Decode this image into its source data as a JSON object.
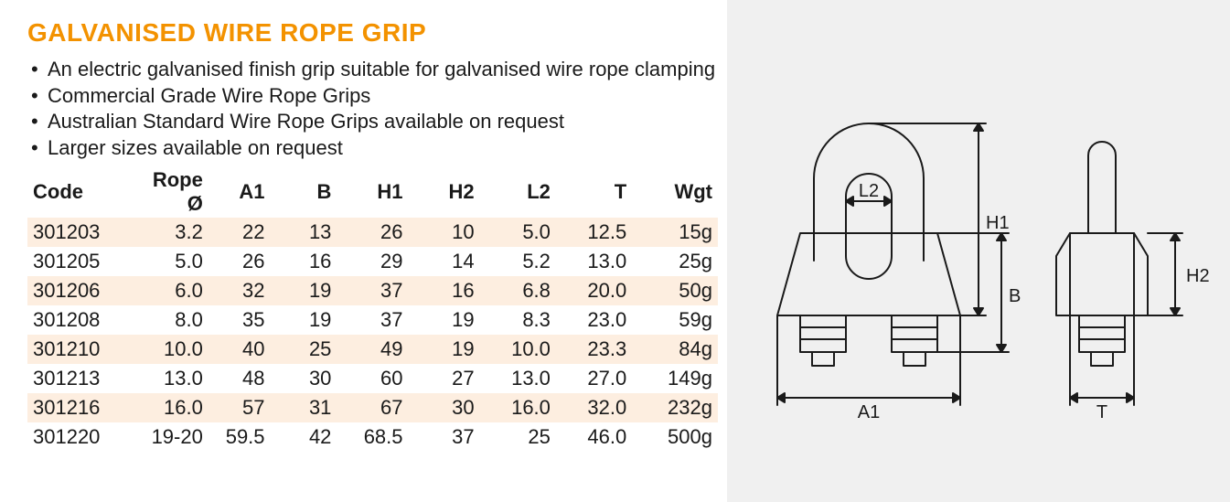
{
  "page": {
    "title": "GALVANISED WIRE ROPE GRIP",
    "title_color": "#f39200",
    "title_fontsize": 28,
    "body_fontsize": 22,
    "text_color": "#1a1a1a",
    "stripe_color": "#fdeee0",
    "diagram_bg": "#f0f0f0"
  },
  "bullets": [
    "An electric galvanised finish grip suitable for galvanised wire rope clamping",
    "Commercial Grade Wire Rope Grips",
    "Australian Standard Wire Rope Grips available on request",
    "Larger sizes available on request"
  ],
  "table": {
    "columns": [
      "Code",
      "Rope Ø",
      "A1",
      "B",
      "H1",
      "H2",
      "L2",
      "T",
      "Wgt"
    ],
    "rows": [
      [
        "301203",
        "3.2",
        "22",
        "13",
        "26",
        "10",
        "5.0",
        "12.5",
        "15g"
      ],
      [
        "301205",
        "5.0",
        "26",
        "16",
        "29",
        "14",
        "5.2",
        "13.0",
        "25g"
      ],
      [
        "301206",
        "6.0",
        "32",
        "19",
        "37",
        "16",
        "6.8",
        "20.0",
        "50g"
      ],
      [
        "301208",
        "8.0",
        "35",
        "19",
        "37",
        "19",
        "8.3",
        "23.0",
        "59g"
      ],
      [
        "301210",
        "10.0",
        "40",
        "25",
        "49",
        "19",
        "10.0",
        "23.3",
        "84g"
      ],
      [
        "301213",
        "13.0",
        "48",
        "30",
        "60",
        "27",
        "13.0",
        "27.0",
        "149g"
      ],
      [
        "301216",
        "16.0",
        "57",
        "31",
        "67",
        "30",
        "16.0",
        "32.0",
        "232g"
      ],
      [
        "301220",
        "19-20",
        "59.5",
        "42",
        "68.5",
        "37",
        "25",
        "46.0",
        "500g"
      ]
    ],
    "stripe_rows": [
      0,
      2,
      4,
      6
    ]
  },
  "diagram": {
    "labels": {
      "L2": "L2",
      "H1": "H1",
      "B": "B",
      "A1": "A1",
      "T": "T",
      "H2": "H2"
    },
    "stroke": "#1a1a1a",
    "stroke_width": 2
  }
}
